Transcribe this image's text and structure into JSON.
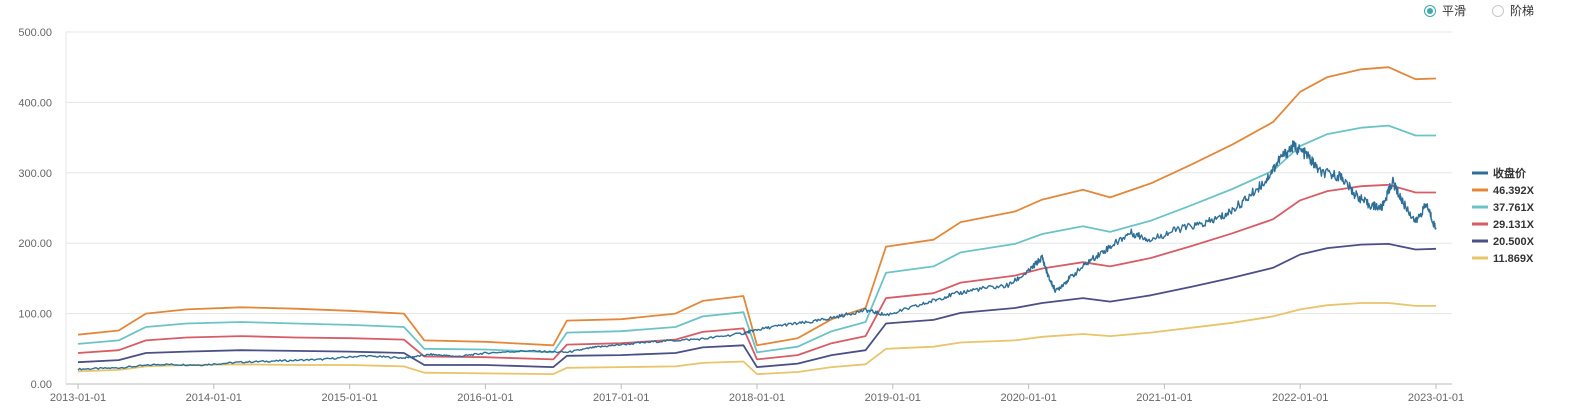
{
  "mode_toggle": {
    "options": [
      {
        "label": "平滑",
        "selected": true
      },
      {
        "label": "阶梯",
        "selected": false
      }
    ]
  },
  "colors": {
    "close": "#2f6f97",
    "pe_46": "#e3883a",
    "pe_37": "#6cc3c7",
    "pe_29": "#d85c66",
    "pe_20": "#4a4f86",
    "pe_11": "#e8c46a",
    "grid": "#e6e6e6",
    "axis": "#bbbbbb"
  },
  "chart_data": {
    "type": "line",
    "title": "",
    "xlabel": "",
    "ylabel": "",
    "ylim": [
      0,
      500
    ],
    "xlim": [
      2013.0,
      2023.0
    ],
    "y_ticks": [
      "0.00",
      "100.00",
      "200.00",
      "300.00",
      "400.00",
      "500.00"
    ],
    "x_ticks": [
      "2013-01-01",
      "2014-01-01",
      "2015-01-01",
      "2016-01-01",
      "2017-01-01",
      "2018-01-01",
      "2019-01-01",
      "2020-01-01",
      "2021-01-01",
      "2022-01-01",
      "2023-01-01"
    ],
    "legend_position": "right",
    "series": [
      {
        "name": "收盘价",
        "color_key": "close",
        "points": [
          [
            2013.0,
            21
          ],
          [
            2013.3,
            23
          ],
          [
            2013.6,
            28
          ],
          [
            2013.9,
            27
          ],
          [
            2014.2,
            31
          ],
          [
            2014.5,
            33
          ],
          [
            2014.8,
            35
          ],
          [
            2015.1,
            40
          ],
          [
            2015.4,
            37
          ],
          [
            2015.6,
            42
          ],
          [
            2015.8,
            39
          ],
          [
            2016.0,
            44
          ],
          [
            2016.3,
            47
          ],
          [
            2016.6,
            45
          ],
          [
            2016.8,
            52
          ],
          [
            2017.0,
            56
          ],
          [
            2017.3,
            61
          ],
          [
            2017.6,
            64
          ],
          [
            2017.9,
            72
          ],
          [
            2018.0,
            77
          ],
          [
            2018.2,
            84
          ],
          [
            2018.4,
            88
          ],
          [
            2018.6,
            96
          ],
          [
            2018.8,
            105
          ],
          [
            2018.95,
            98
          ],
          [
            2019.2,
            112
          ],
          [
            2019.4,
            125
          ],
          [
            2019.6,
            134
          ],
          [
            2019.85,
            140
          ],
          [
            2020.0,
            160
          ],
          [
            2020.1,
            180
          ],
          [
            2020.15,
            150
          ],
          [
            2020.2,
            132
          ],
          [
            2020.3,
            150
          ],
          [
            2020.45,
            175
          ],
          [
            2020.6,
            195
          ],
          [
            2020.75,
            215
          ],
          [
            2020.9,
            205
          ],
          [
            2021.1,
            220
          ],
          [
            2021.3,
            228
          ],
          [
            2021.45,
            240
          ],
          [
            2021.6,
            262
          ],
          [
            2021.75,
            290
          ],
          [
            2021.85,
            320
          ],
          [
            2021.95,
            338
          ],
          [
            2022.05,
            325
          ],
          [
            2022.15,
            300
          ],
          [
            2022.3,
            295
          ],
          [
            2022.4,
            270
          ],
          [
            2022.5,
            255
          ],
          [
            2022.6,
            250
          ],
          [
            2022.68,
            288
          ],
          [
            2022.75,
            260
          ],
          [
            2022.85,
            230
          ],
          [
            2022.93,
            255
          ],
          [
            2023.0,
            220
          ]
        ]
      },
      {
        "name": "46.392X",
        "color_key": "pe_46",
        "points": [
          [
            2013.0,
            70
          ],
          [
            2013.3,
            76
          ],
          [
            2013.5,
            100
          ],
          [
            2013.8,
            106
          ],
          [
            2014.2,
            109
          ],
          [
            2014.6,
            107
          ],
          [
            2015.0,
            104
          ],
          [
            2015.4,
            100
          ],
          [
            2015.55,
            62
          ],
          [
            2016.0,
            60
          ],
          [
            2016.5,
            55
          ],
          [
            2016.6,
            90
          ],
          [
            2017.0,
            92
          ],
          [
            2017.4,
            100
          ],
          [
            2017.6,
            118
          ],
          [
            2017.9,
            125
          ],
          [
            2018.0,
            55
          ],
          [
            2018.3,
            65
          ],
          [
            2018.55,
            92
          ],
          [
            2018.8,
            108
          ],
          [
            2018.95,
            195
          ],
          [
            2019.3,
            205
          ],
          [
            2019.5,
            230
          ],
          [
            2019.9,
            245
          ],
          [
            2020.1,
            262
          ],
          [
            2020.4,
            276
          ],
          [
            2020.6,
            265
          ],
          [
            2020.9,
            285
          ],
          [
            2021.2,
            312
          ],
          [
            2021.5,
            340
          ],
          [
            2021.8,
            372
          ],
          [
            2022.0,
            415
          ],
          [
            2022.2,
            436
          ],
          [
            2022.45,
            447
          ],
          [
            2022.65,
            450
          ],
          [
            2022.85,
            433
          ],
          [
            2023.0,
            434
          ]
        ]
      },
      {
        "name": "37.761X",
        "color_key": "pe_37",
        "points": [
          [
            2013.0,
            57
          ],
          [
            2013.3,
            62
          ],
          [
            2013.5,
            81
          ],
          [
            2013.8,
            86
          ],
          [
            2014.2,
            88
          ],
          [
            2014.6,
            86
          ],
          [
            2015.0,
            84
          ],
          [
            2015.4,
            81
          ],
          [
            2015.55,
            50
          ],
          [
            2016.0,
            49
          ],
          [
            2016.5,
            45
          ],
          [
            2016.6,
            73
          ],
          [
            2017.0,
            75
          ],
          [
            2017.4,
            81
          ],
          [
            2017.6,
            96
          ],
          [
            2017.9,
            102
          ],
          [
            2018.0,
            45
          ],
          [
            2018.3,
            53
          ],
          [
            2018.55,
            75
          ],
          [
            2018.8,
            88
          ],
          [
            2018.95,
            158
          ],
          [
            2019.3,
            167
          ],
          [
            2019.5,
            187
          ],
          [
            2019.9,
            199
          ],
          [
            2020.1,
            213
          ],
          [
            2020.4,
            224
          ],
          [
            2020.6,
            216
          ],
          [
            2020.9,
            232
          ],
          [
            2021.2,
            254
          ],
          [
            2021.5,
            277
          ],
          [
            2021.8,
            303
          ],
          [
            2022.0,
            338
          ],
          [
            2022.2,
            355
          ],
          [
            2022.45,
            364
          ],
          [
            2022.65,
            367
          ],
          [
            2022.85,
            353
          ],
          [
            2023.0,
            353
          ]
        ]
      },
      {
        "name": "29.131X",
        "color_key": "pe_29",
        "points": [
          [
            2013.0,
            44
          ],
          [
            2013.3,
            48
          ],
          [
            2013.5,
            62
          ],
          [
            2013.8,
            66
          ],
          [
            2014.2,
            68
          ],
          [
            2014.6,
            66
          ],
          [
            2015.0,
            65
          ],
          [
            2015.4,
            63
          ],
          [
            2015.55,
            39
          ],
          [
            2016.0,
            38
          ],
          [
            2016.5,
            35
          ],
          [
            2016.6,
            56
          ],
          [
            2017.0,
            58
          ],
          [
            2017.4,
            63
          ],
          [
            2017.6,
            74
          ],
          [
            2017.9,
            79
          ],
          [
            2018.0,
            35
          ],
          [
            2018.3,
            41
          ],
          [
            2018.55,
            58
          ],
          [
            2018.8,
            68
          ],
          [
            2018.95,
            122
          ],
          [
            2019.3,
            129
          ],
          [
            2019.5,
            144
          ],
          [
            2019.9,
            154
          ],
          [
            2020.1,
            164
          ],
          [
            2020.4,
            173
          ],
          [
            2020.6,
            167
          ],
          [
            2020.9,
            179
          ],
          [
            2021.2,
            196
          ],
          [
            2021.5,
            214
          ],
          [
            2021.8,
            234
          ],
          [
            2022.0,
            261
          ],
          [
            2022.2,
            274
          ],
          [
            2022.45,
            281
          ],
          [
            2022.65,
            283
          ],
          [
            2022.85,
            272
          ],
          [
            2023.0,
            272
          ]
        ]
      },
      {
        "name": "20.500X",
        "color_key": "pe_20",
        "points": [
          [
            2013.0,
            31
          ],
          [
            2013.3,
            34
          ],
          [
            2013.5,
            44
          ],
          [
            2013.8,
            46
          ],
          [
            2014.2,
            48
          ],
          [
            2014.6,
            47
          ],
          [
            2015.0,
            46
          ],
          [
            2015.4,
            44
          ],
          [
            2015.55,
            27
          ],
          [
            2016.0,
            27
          ],
          [
            2016.5,
            24
          ],
          [
            2016.6,
            40
          ],
          [
            2017.0,
            41
          ],
          [
            2017.4,
            44
          ],
          [
            2017.6,
            52
          ],
          [
            2017.9,
            55
          ],
          [
            2018.0,
            24
          ],
          [
            2018.3,
            29
          ],
          [
            2018.55,
            41
          ],
          [
            2018.8,
            48
          ],
          [
            2018.95,
            86
          ],
          [
            2019.3,
            91
          ],
          [
            2019.5,
            101
          ],
          [
            2019.9,
            108
          ],
          [
            2020.1,
            115
          ],
          [
            2020.4,
            122
          ],
          [
            2020.6,
            117
          ],
          [
            2020.9,
            126
          ],
          [
            2021.2,
            138
          ],
          [
            2021.5,
            151
          ],
          [
            2021.8,
            165
          ],
          [
            2022.0,
            184
          ],
          [
            2022.2,
            193
          ],
          [
            2022.45,
            198
          ],
          [
            2022.65,
            199
          ],
          [
            2022.85,
            191
          ],
          [
            2023.0,
            192
          ]
        ]
      },
      {
        "name": "11.869X",
        "color_key": "pe_11",
        "points": [
          [
            2013.0,
            18
          ],
          [
            2013.3,
            20
          ],
          [
            2013.5,
            25
          ],
          [
            2013.8,
            27
          ],
          [
            2014.2,
            28
          ],
          [
            2014.6,
            27
          ],
          [
            2015.0,
            27
          ],
          [
            2015.4,
            25
          ],
          [
            2015.55,
            16
          ],
          [
            2016.0,
            15
          ],
          [
            2016.5,
            14
          ],
          [
            2016.6,
            23
          ],
          [
            2017.0,
            24
          ],
          [
            2017.4,
            25
          ],
          [
            2017.6,
            30
          ],
          [
            2017.9,
            32
          ],
          [
            2018.0,
            14
          ],
          [
            2018.3,
            17
          ],
          [
            2018.55,
            24
          ],
          [
            2018.8,
            28
          ],
          [
            2018.95,
            50
          ],
          [
            2019.3,
            53
          ],
          [
            2019.5,
            59
          ],
          [
            2019.9,
            62
          ],
          [
            2020.1,
            67
          ],
          [
            2020.4,
            71
          ],
          [
            2020.6,
            68
          ],
          [
            2020.9,
            73
          ],
          [
            2021.2,
            80
          ],
          [
            2021.5,
            87
          ],
          [
            2021.8,
            96
          ],
          [
            2022.0,
            106
          ],
          [
            2022.2,
            112
          ],
          [
            2022.45,
            115
          ],
          [
            2022.65,
            115
          ],
          [
            2022.85,
            111
          ],
          [
            2023.0,
            111
          ]
        ]
      }
    ]
  }
}
